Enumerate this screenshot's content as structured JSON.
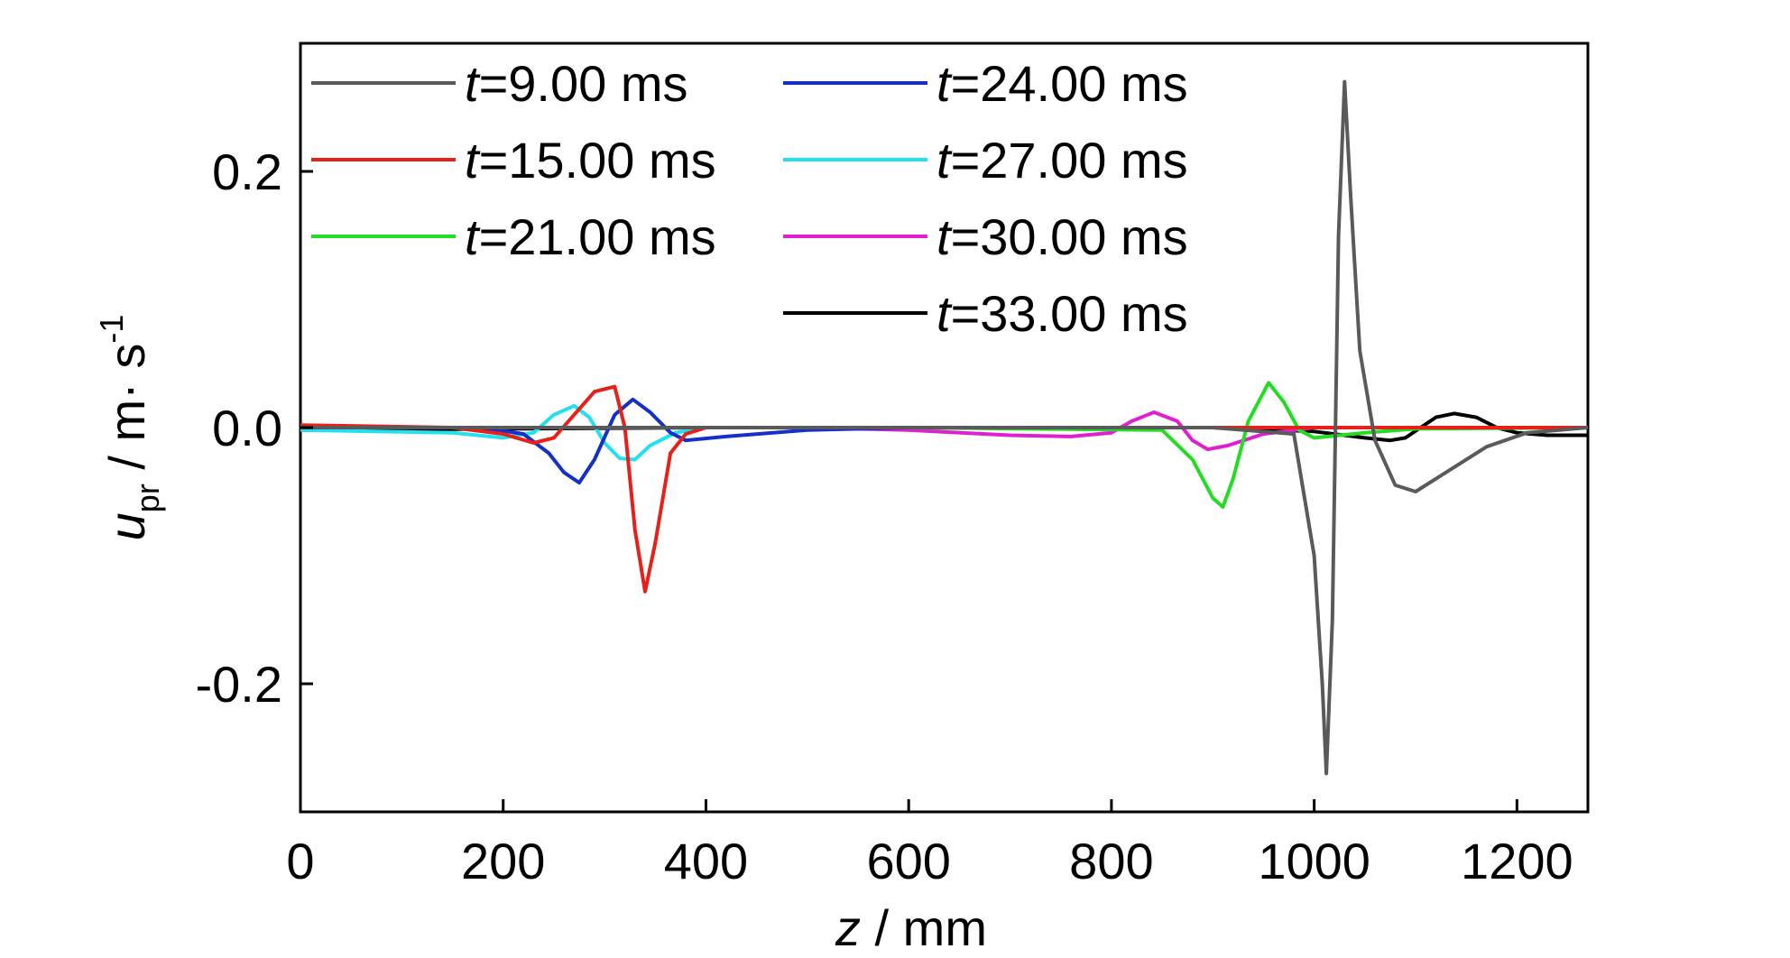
{
  "chart_data": {
    "type": "line",
    "xlabel_var": "z",
    "xlabel_unit": " / mm",
    "ylabel_var": "u",
    "ylabel_sub": "pr",
    "ylabel_unit": " / m· s",
    "ylabel_sup": "-1",
    "xlim": [
      0,
      1270
    ],
    "ylim": [
      -0.3,
      0.3
    ],
    "xticks": [
      0,
      200,
      400,
      600,
      800,
      1000,
      1200
    ],
    "yticks": [
      -0.2,
      0.0,
      0.2
    ],
    "ytick_labels": [
      "-0.2",
      "0.0",
      "0.2"
    ],
    "legend_placement": "top-left, two columns",
    "series": [
      {
        "name_var": "t",
        "name_rest": "=9.00 ms",
        "color": "#5a5a5a",
        "x": [
          0,
          600,
          900,
          980,
          1000,
          1008,
          1012,
          1018,
          1024,
          1030,
          1036,
          1045,
          1060,
          1080,
          1100,
          1130,
          1170,
          1210,
          1270
        ],
        "y": [
          0.0,
          0.0,
          0.0,
          -0.005,
          -0.1,
          -0.2,
          -0.27,
          -0.15,
          0.15,
          0.27,
          0.18,
          0.06,
          -0.01,
          -0.045,
          -0.05,
          -0.035,
          -0.015,
          -0.004,
          0.0
        ]
      },
      {
        "name_var": "t",
        "name_rest": "=15.00 ms",
        "color": "#e8201a",
        "x": [
          0,
          150,
          200,
          230,
          250,
          270,
          290,
          310,
          320,
          330,
          340,
          350,
          365,
          380,
          400,
          500,
          1270
        ],
        "y": [
          0.002,
          0.0,
          -0.005,
          -0.012,
          -0.008,
          0.01,
          0.028,
          0.032,
          0.0,
          -0.08,
          -0.128,
          -0.09,
          -0.02,
          -0.005,
          0.0,
          0.0,
          0.0
        ]
      },
      {
        "name_var": "t",
        "name_rest": "=21.00 ms",
        "color": "#22dd22",
        "x": [
          0,
          600,
          850,
          880,
          900,
          910,
          920,
          935,
          955,
          970,
          985,
          1000,
          1050,
          1100,
          1270
        ],
        "y": [
          0.0,
          0.0,
          -0.002,
          -0.025,
          -0.055,
          -0.062,
          -0.04,
          0.005,
          0.035,
          0.02,
          -0.002,
          -0.008,
          -0.004,
          -0.001,
          0.0
        ]
      },
      {
        "name_var": "t",
        "name_rest": "=24.00 ms",
        "color": "#1530c8",
        "x": [
          0,
          180,
          220,
          245,
          260,
          275,
          290,
          310,
          328,
          345,
          365,
          380,
          420,
          500,
          600,
          1270
        ],
        "y": [
          0.0,
          0.0,
          -0.005,
          -0.02,
          -0.035,
          -0.043,
          -0.025,
          0.01,
          0.022,
          0.012,
          -0.004,
          -0.01,
          -0.007,
          -0.002,
          0.0,
          0.0
        ]
      },
      {
        "name_var": "t",
        "name_rest": "=27.00 ms",
        "color": "#22e0ee",
        "x": [
          0,
          150,
          200,
          230,
          250,
          270,
          285,
          300,
          315,
          330,
          345,
          370,
          400,
          1270
        ],
        "y": [
          -0.002,
          -0.004,
          -0.008,
          -0.004,
          0.01,
          0.017,
          0.008,
          -0.012,
          -0.024,
          -0.025,
          -0.014,
          -0.004,
          0.0,
          0.0
        ]
      },
      {
        "name_var": "t",
        "name_rest": "=30.00 ms",
        "color": "#e020d0",
        "x": [
          0,
          500,
          600,
          700,
          760,
          800,
          820,
          842,
          865,
          880,
          895,
          915,
          950,
          1000,
          1100,
          1270
        ],
        "y": [
          0.0,
          0.0,
          -0.002,
          -0.006,
          -0.007,
          -0.004,
          0.005,
          0.012,
          0.005,
          -0.01,
          -0.017,
          -0.014,
          -0.005,
          0.0,
          0.0,
          0.0
        ]
      },
      {
        "name_var": "t",
        "name_rest": "=33.00 ms",
        "color": "#000000",
        "x": [
          0,
          400,
          900,
          1000,
          1050,
          1075,
          1090,
          1105,
          1120,
          1138,
          1160,
          1180,
          1200,
          1230,
          1270
        ],
        "y": [
          -0.002,
          0.0,
          0.0,
          -0.003,
          -0.008,
          -0.01,
          -0.008,
          0.0,
          0.008,
          0.011,
          0.008,
          0.0,
          -0.004,
          -0.006,
          -0.006
        ]
      }
    ]
  }
}
